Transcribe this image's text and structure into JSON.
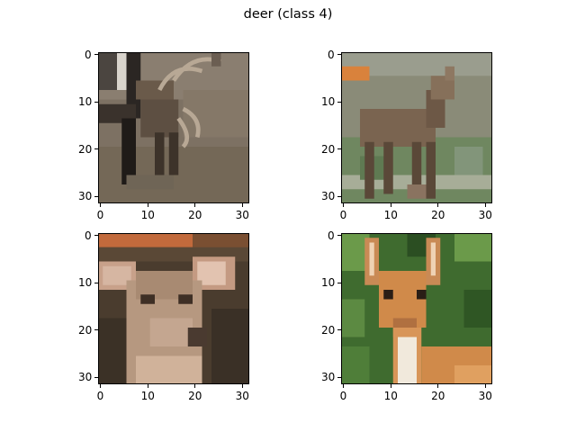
{
  "figure": {
    "title": "deer (class 4)"
  },
  "axes": {
    "tick_labels": [
      "0",
      "10",
      "20",
      "30"
    ],
    "tick_values": [
      0,
      10,
      20,
      30
    ],
    "image_size": [
      32,
      32
    ]
  },
  "panels": [
    {
      "name": "panel-top-left",
      "scene": "deer with antlers beside dark tree trunk on muddy ground",
      "colors": {
        "ground": "#7d7163",
        "trunk": "#2a2521",
        "animal": "#5f5244",
        "antler": "#b8a895"
      }
    },
    {
      "name": "panel-top-right",
      "scene": "brown deer standing in grassy field",
      "colors": {
        "background": "#8a8b78",
        "grass": "#6f8760",
        "animal": "#7a6450",
        "accent": "#d9823c"
      }
    },
    {
      "name": "panel-bottom-left",
      "scene": "close-up deer face with large ears, blurred dark background",
      "colors": {
        "background": "#4a3c2e",
        "face": "#b69880",
        "ear": "#d6b6a2",
        "top_band": "#c26a3c"
      }
    },
    {
      "name": "panel-bottom-right",
      "scene": "young deer with white throat against green foliage",
      "colors": {
        "foliage": "#3f6b2f",
        "foliage_light": "#6b9a4a",
        "body": "#d08a4a",
        "throat": "#f1e9dc"
      }
    }
  ]
}
